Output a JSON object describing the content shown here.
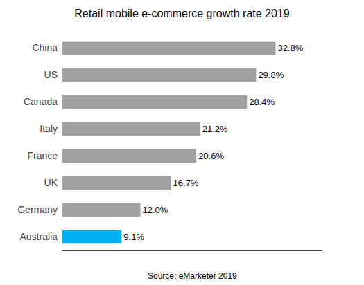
{
  "chart_data": {
    "type": "bar",
    "orientation": "horizontal",
    "title": "Retail mobile e-commerce growth rate 2019",
    "categories": [
      "China",
      "US",
      "Canada",
      "Italy",
      "France",
      "UK",
      "Germany",
      "Australia"
    ],
    "values": [
      32.8,
      29.8,
      28.4,
      21.2,
      20.6,
      16.7,
      12.0,
      9.1
    ],
    "value_labels": [
      "32.8%",
      "29.8%",
      "28.4%",
      "21.2%",
      "20.6%",
      "16.7%",
      "12.0%",
      "9.1%"
    ],
    "colors": [
      "#a0a0a0",
      "#a0a0a0",
      "#a0a0a0",
      "#a0a0a0",
      "#a0a0a0",
      "#a0a0a0",
      "#a0a0a0",
      "#00b0f0"
    ],
    "annotations": [
      "Source: eMarketer 2019"
    ],
    "xlim": [
      0,
      40
    ],
    "xticks": [],
    "tick_labels": "y",
    "data_labels": true,
    "grid": false
  }
}
